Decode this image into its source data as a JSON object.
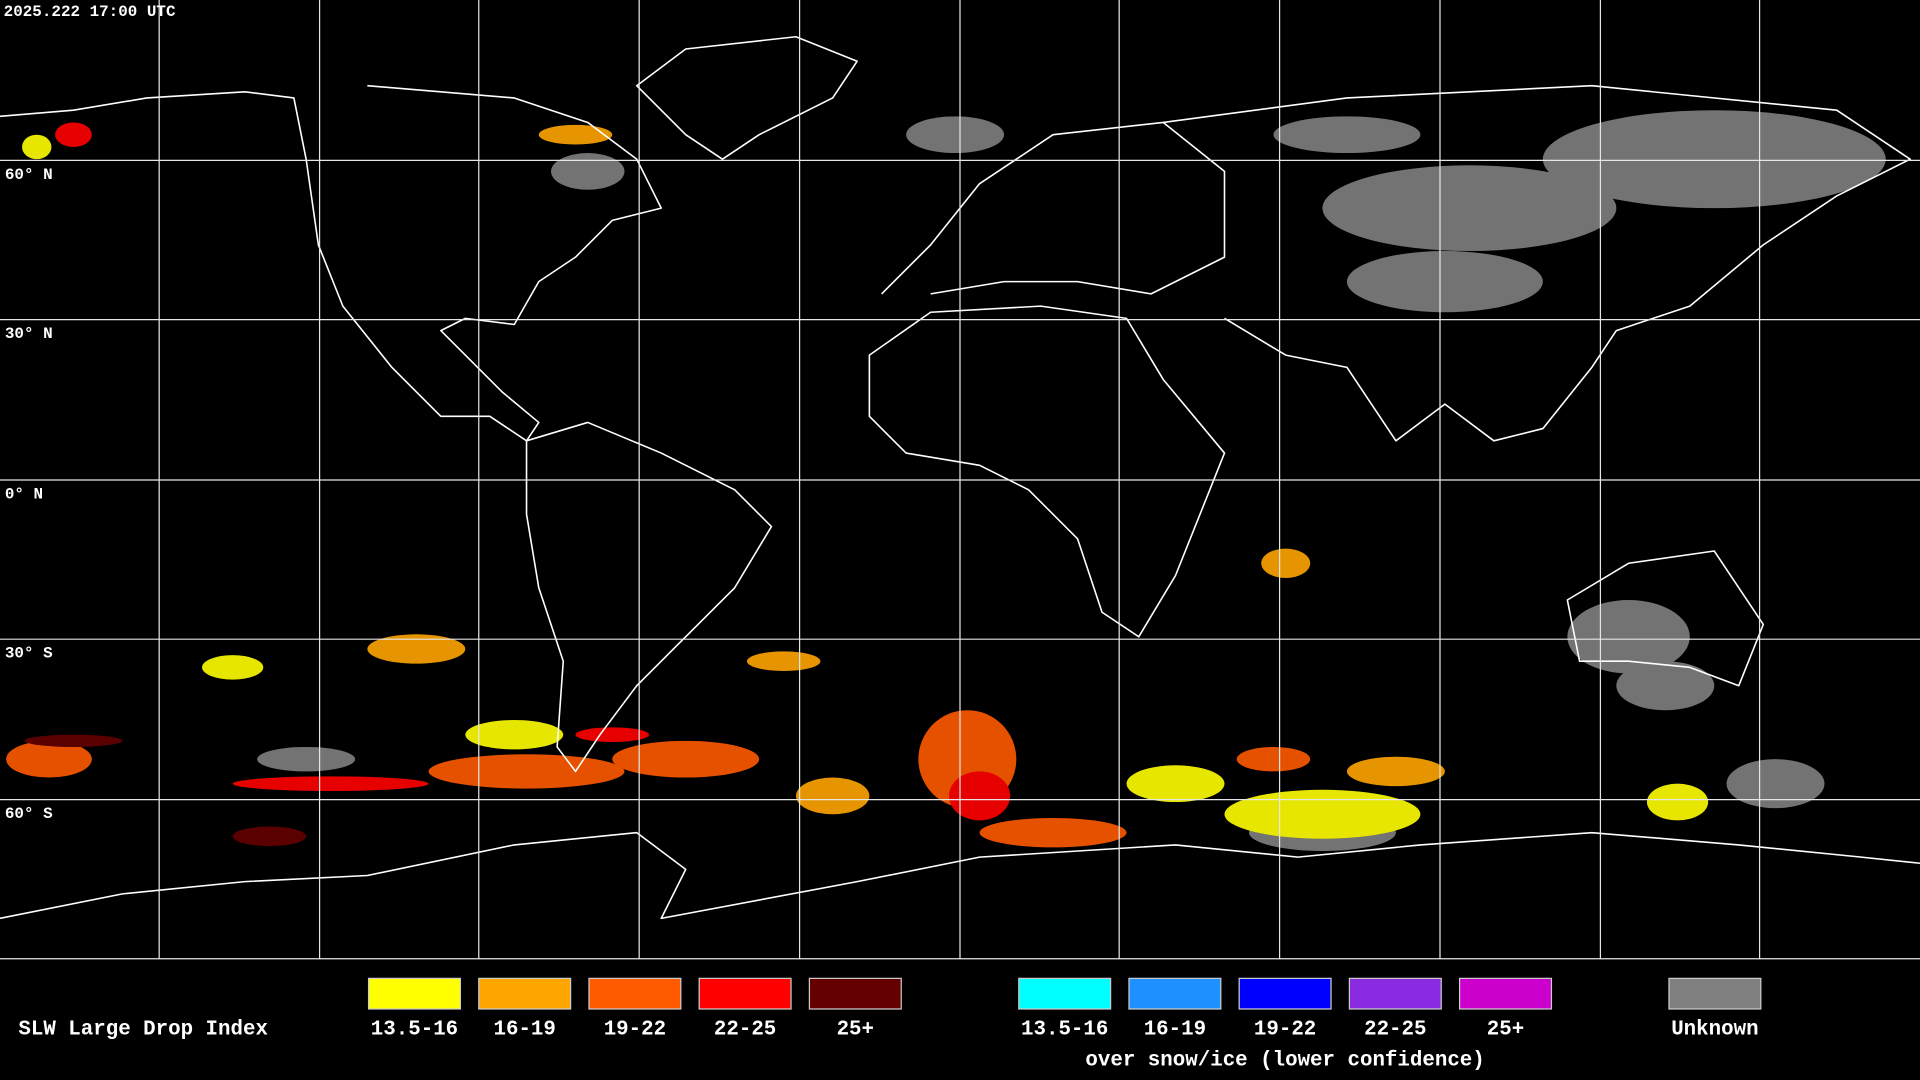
{
  "timestamp": "2025.222 17:00 UTC",
  "latitude_labels": [
    "60° N",
    "30° N",
    "0° N",
    "30° S",
    "60° S"
  ],
  "legend": {
    "title": "SLW Large Drop Index",
    "groups": [
      {
        "items": [
          {
            "label": "13.5-16",
            "color": "#ffff00"
          },
          {
            "label": "16-19",
            "color": "#ffa500"
          },
          {
            "label": "19-22",
            "color": "#ff5a00"
          },
          {
            "label": "22-25",
            "color": "#ff0000"
          },
          {
            "label": "25+",
            "color": "#640000"
          }
        ]
      },
      {
        "note": "over snow/ice (lower confidence)",
        "items": [
          {
            "label": "13.5-16",
            "color": "#00ffff"
          },
          {
            "label": "16-19",
            "color": "#1e90ff"
          },
          {
            "label": "19-22",
            "color": "#0000ff"
          },
          {
            "label": "22-25",
            "color": "#8a2be2"
          },
          {
            "label": "25+",
            "color": "#cc00cc"
          }
        ]
      },
      {
        "items": [
          {
            "label": "Unknown",
            "color": "#808080"
          }
        ]
      }
    ]
  }
}
